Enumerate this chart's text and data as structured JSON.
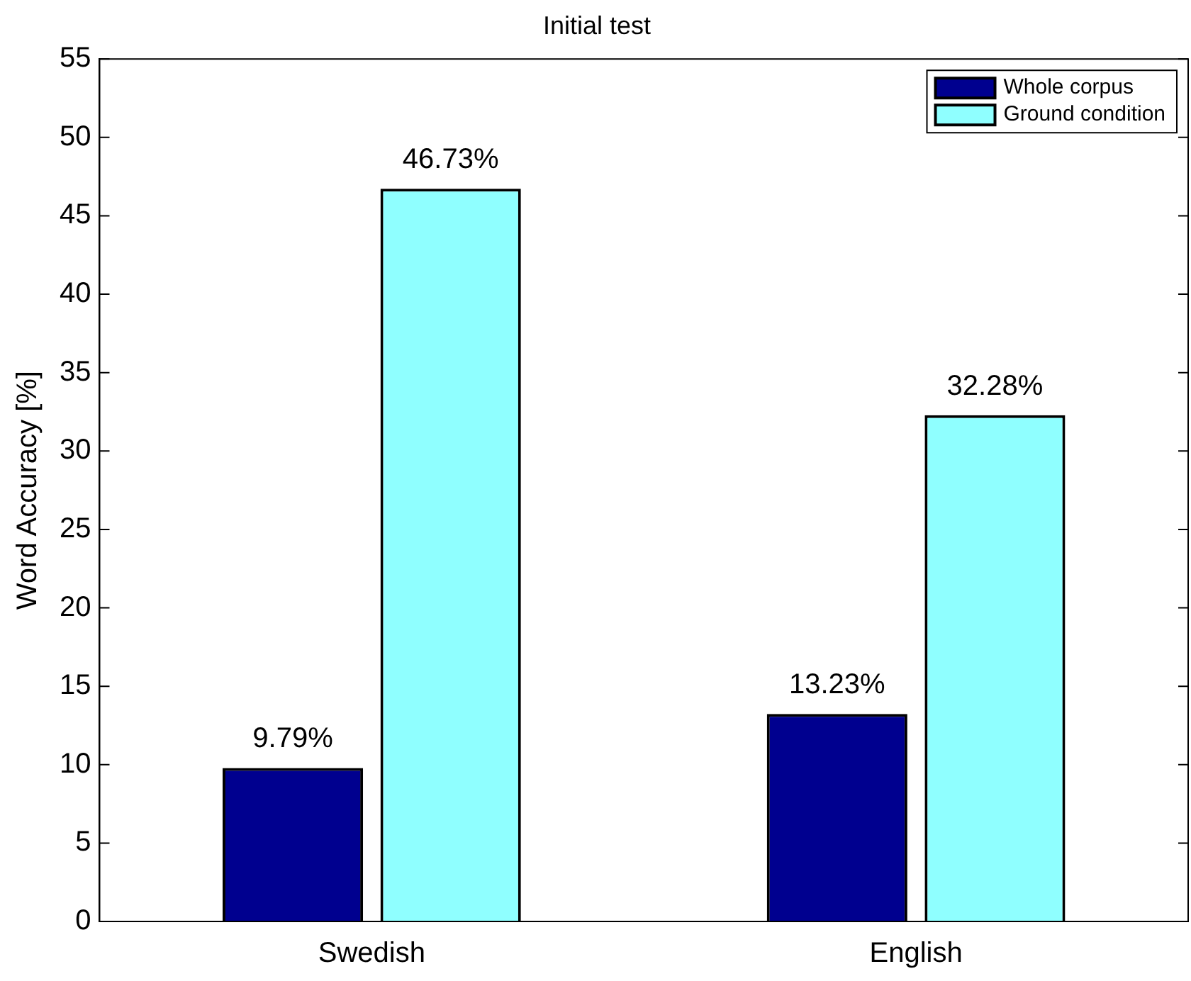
{
  "chart_data": {
    "type": "bar",
    "title": "Initial test",
    "ylabel": "Word Accuracy [%]",
    "categories": [
      "Swedish",
      "English"
    ],
    "series": [
      {
        "name": "Whole corpus",
        "color": "#00008f",
        "values": [
          9.79,
          13.23
        ],
        "value_labels": [
          "9.79%",
          "13.23%"
        ]
      },
      {
        "name": "Ground condition",
        "color": "#8fffff",
        "values": [
          46.73,
          32.28
        ],
        "value_labels": [
          "46.73%",
          "32.28%"
        ]
      }
    ],
    "ylim": [
      0,
      55
    ],
    "yticks": [
      0,
      5,
      10,
      15,
      20,
      25,
      30,
      35,
      40,
      45,
      50,
      55
    ],
    "grid": false,
    "legend": "top right"
  }
}
